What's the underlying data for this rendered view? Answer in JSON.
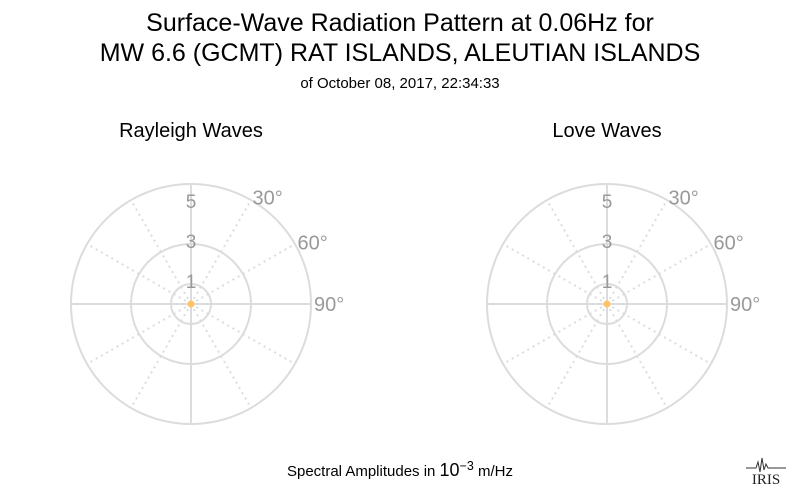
{
  "title_line1": "Surface-Wave Radiation Pattern at 0.06Hz for",
  "title_line2": "MW 6.6 (GCMT) RAT ISLANDS, ALEUTIAN ISLANDS",
  "subtitle": "of October 08, 2017, 22:34:33",
  "footer": {
    "prefix": "Spectral Amplitudes in ",
    "base": "10",
    "exponent": "−3",
    "unit": " m/Hz"
  },
  "logo_text": "IRIS",
  "colors": {
    "grid": "#dcdcdc",
    "tick": "#999999",
    "point": "#ffc266"
  },
  "chart_data": [
    {
      "type": "polar",
      "title": "Rayleigh Waves",
      "radial_ticks": [
        "1",
        "3",
        "5"
      ],
      "radial_tick_values": [
        1,
        3,
        5
      ],
      "radial_range": [
        0,
        6
      ],
      "angular_ticks": [
        "30°",
        "60°",
        "90°"
      ],
      "angular_tick_values": [
        30,
        60,
        90
      ],
      "grid": true,
      "series": [
        {
          "values": [
            {
              "theta": 0,
              "r": 0
            }
          ]
        }
      ]
    },
    {
      "type": "polar",
      "title": "Love Waves",
      "radial_ticks": [
        "1",
        "3",
        "5"
      ],
      "radial_tick_values": [
        1,
        3,
        5
      ],
      "radial_range": [
        0,
        6
      ],
      "angular_ticks": [
        "30°",
        "60°",
        "90°"
      ],
      "angular_tick_values": [
        30,
        60,
        90
      ],
      "grid": true,
      "series": [
        {
          "values": [
            {
              "theta": 0,
              "r": 0
            }
          ]
        }
      ]
    }
  ]
}
